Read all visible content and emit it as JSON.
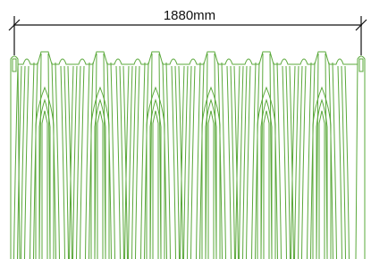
{
  "dimension": {
    "label": "1880mm"
  }
}
